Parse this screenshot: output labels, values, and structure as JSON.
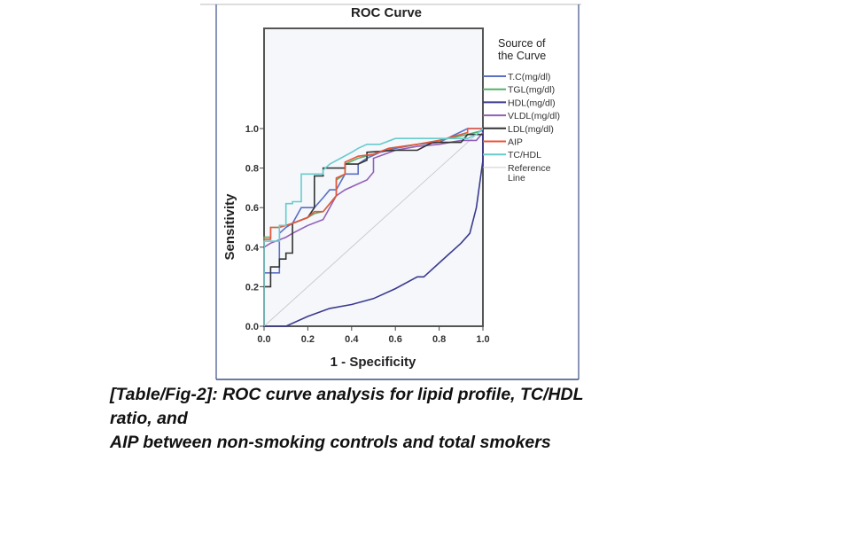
{
  "chart_data": {
    "type": "line",
    "title": "ROC Curve",
    "xlabel": "1 - Specificity",
    "ylabel": "Sensitivity",
    "xlim": [
      0,
      1
    ],
    "ylim": [
      0,
      1
    ],
    "xticks": [
      "0.0",
      "0.2",
      "0.4",
      "0.6",
      "0.8",
      "1.0"
    ],
    "yticks": [
      "0.0",
      "0.2",
      "0.4",
      "0.6",
      "0.8",
      "1.0"
    ],
    "legend_title": "Source of the Curve",
    "legend_title_lines": [
      "Source of",
      "the Curve"
    ],
    "legend_position": "right",
    "grid": false,
    "series": [
      {
        "name": "T.C(mg/dl)",
        "color": "#5b6fc4",
        "points": [
          [
            0,
            0
          ],
          [
            0,
            0.27
          ],
          [
            0.07,
            0.27
          ],
          [
            0.07,
            0.47
          ],
          [
            0.1,
            0.5
          ],
          [
            0.13,
            0.52
          ],
          [
            0.17,
            0.6
          ],
          [
            0.23,
            0.6
          ],
          [
            0.27,
            0.65
          ],
          [
            0.3,
            0.69
          ],
          [
            0.33,
            0.69
          ],
          [
            0.37,
            0.77
          ],
          [
            0.43,
            0.77
          ],
          [
            0.43,
            0.82
          ],
          [
            0.47,
            0.85
          ],
          [
            0.53,
            0.88
          ],
          [
            0.6,
            0.9
          ],
          [
            0.7,
            0.92
          ],
          [
            0.8,
            0.93
          ],
          [
            0.93,
            1.0
          ],
          [
            1,
            1
          ]
        ]
      },
      {
        "name": "TGL(mg/dl)",
        "color": "#55b06a",
        "points": [
          [
            0,
            0
          ],
          [
            0,
            0.45
          ],
          [
            0.03,
            0.45
          ],
          [
            0.03,
            0.5
          ],
          [
            0.07,
            0.5
          ],
          [
            0.13,
            0.52
          ],
          [
            0.2,
            0.55
          ],
          [
            0.23,
            0.57
          ],
          [
            0.27,
            0.58
          ],
          [
            0.3,
            0.62
          ],
          [
            0.33,
            0.66
          ],
          [
            0.33,
            0.74
          ],
          [
            0.37,
            0.77
          ],
          [
            0.37,
            0.82
          ],
          [
            0.43,
            0.85
          ],
          [
            0.5,
            0.87
          ],
          [
            0.57,
            0.9
          ],
          [
            0.7,
            0.92
          ],
          [
            0.8,
            0.94
          ],
          [
            0.93,
            0.97
          ],
          [
            1,
            0.99
          ]
        ]
      },
      {
        "name": "HDL(mg/dl)",
        "color": "#3b3b8e",
        "points": [
          [
            0,
            0
          ],
          [
            0.1,
            0
          ],
          [
            0.2,
            0.05
          ],
          [
            0.3,
            0.09
          ],
          [
            0.4,
            0.11
          ],
          [
            0.5,
            0.14
          ],
          [
            0.6,
            0.19
          ],
          [
            0.7,
            0.25
          ],
          [
            0.73,
            0.25
          ],
          [
            0.8,
            0.32
          ],
          [
            0.9,
            0.42
          ],
          [
            0.94,
            0.47
          ],
          [
            0.97,
            0.6
          ],
          [
            1.0,
            0.84
          ],
          [
            1,
            1
          ]
        ]
      },
      {
        "name": "VLDL(mg/dl)",
        "color": "#9160b8",
        "points": [
          [
            0,
            0
          ],
          [
            0,
            0.4
          ],
          [
            0.03,
            0.42
          ],
          [
            0.1,
            0.45
          ],
          [
            0.13,
            0.47
          ],
          [
            0.2,
            0.51
          ],
          [
            0.27,
            0.54
          ],
          [
            0.3,
            0.6
          ],
          [
            0.33,
            0.66
          ],
          [
            0.37,
            0.69
          ],
          [
            0.43,
            0.72
          ],
          [
            0.47,
            0.74
          ],
          [
            0.5,
            0.78
          ],
          [
            0.5,
            0.85
          ],
          [
            0.55,
            0.87
          ],
          [
            0.6,
            0.89
          ],
          [
            0.7,
            0.91
          ],
          [
            0.8,
            0.92
          ],
          [
            0.9,
            0.94
          ],
          [
            0.97,
            0.94
          ],
          [
            1,
            0.98
          ]
        ]
      },
      {
        "name": "LDL(mg/dl)",
        "color": "#333333",
        "points": [
          [
            0,
            0
          ],
          [
            0,
            0.2
          ],
          [
            0.03,
            0.2
          ],
          [
            0.03,
            0.3
          ],
          [
            0.07,
            0.3
          ],
          [
            0.07,
            0.34
          ],
          [
            0.1,
            0.34
          ],
          [
            0.1,
            0.37
          ],
          [
            0.13,
            0.37
          ],
          [
            0.13,
            0.52
          ],
          [
            0.2,
            0.55
          ],
          [
            0.23,
            0.6
          ],
          [
            0.23,
            0.76
          ],
          [
            0.27,
            0.76
          ],
          [
            0.27,
            0.8
          ],
          [
            0.37,
            0.8
          ],
          [
            0.37,
            0.82
          ],
          [
            0.43,
            0.82
          ],
          [
            0.47,
            0.84
          ],
          [
            0.47,
            0.88
          ],
          [
            0.6,
            0.89
          ],
          [
            0.7,
            0.89
          ],
          [
            0.77,
            0.93
          ],
          [
            0.9,
            0.93
          ],
          [
            0.93,
            0.97
          ],
          [
            1,
            0.97
          ]
        ]
      },
      {
        "name": "AIP",
        "color": "#e8553a",
        "points": [
          [
            0,
            0
          ],
          [
            0,
            0.44
          ],
          [
            0.03,
            0.44
          ],
          [
            0.03,
            0.5
          ],
          [
            0.07,
            0.5
          ],
          [
            0.13,
            0.52
          ],
          [
            0.2,
            0.55
          ],
          [
            0.23,
            0.58
          ],
          [
            0.27,
            0.58
          ],
          [
            0.3,
            0.62
          ],
          [
            0.33,
            0.66
          ],
          [
            0.33,
            0.75
          ],
          [
            0.37,
            0.77
          ],
          [
            0.37,
            0.83
          ],
          [
            0.43,
            0.86
          ],
          [
            0.5,
            0.87
          ],
          [
            0.57,
            0.9
          ],
          [
            0.7,
            0.92
          ],
          [
            0.8,
            0.94
          ],
          [
            0.93,
            0.98
          ],
          [
            0.93,
            1
          ],
          [
            1,
            1
          ]
        ]
      },
      {
        "name": "TC/HDL",
        "color": "#66cccc",
        "points": [
          [
            0,
            0
          ],
          [
            0,
            0.43
          ],
          [
            0.07,
            0.43
          ],
          [
            0.07,
            0.51
          ],
          [
            0.1,
            0.51
          ],
          [
            0.1,
            0.62
          ],
          [
            0.13,
            0.62
          ],
          [
            0.13,
            0.63
          ],
          [
            0.17,
            0.63
          ],
          [
            0.17,
            0.77
          ],
          [
            0.27,
            0.77
          ],
          [
            0.27,
            0.79
          ],
          [
            0.3,
            0.82
          ],
          [
            0.35,
            0.85
          ],
          [
            0.4,
            0.88
          ],
          [
            0.43,
            0.9
          ],
          [
            0.47,
            0.92
          ],
          [
            0.53,
            0.92
          ],
          [
            0.6,
            0.95
          ],
          [
            0.93,
            0.95
          ],
          [
            0.97,
            0.97
          ],
          [
            1,
            1
          ]
        ]
      },
      {
        "name": "Reference Line",
        "label_lines": [
          "Reference",
          "Line"
        ],
        "color": "#cccccc",
        "points": [
          [
            0,
            0
          ],
          [
            1,
            1
          ]
        ]
      }
    ]
  },
  "caption": {
    "lines": [
      "[Table/Fig-2]: ROC curve analysis for lipid profile, TC/HDL",
      "ratio, and",
      "AIP between non-smoking controls and total smokers"
    ]
  }
}
